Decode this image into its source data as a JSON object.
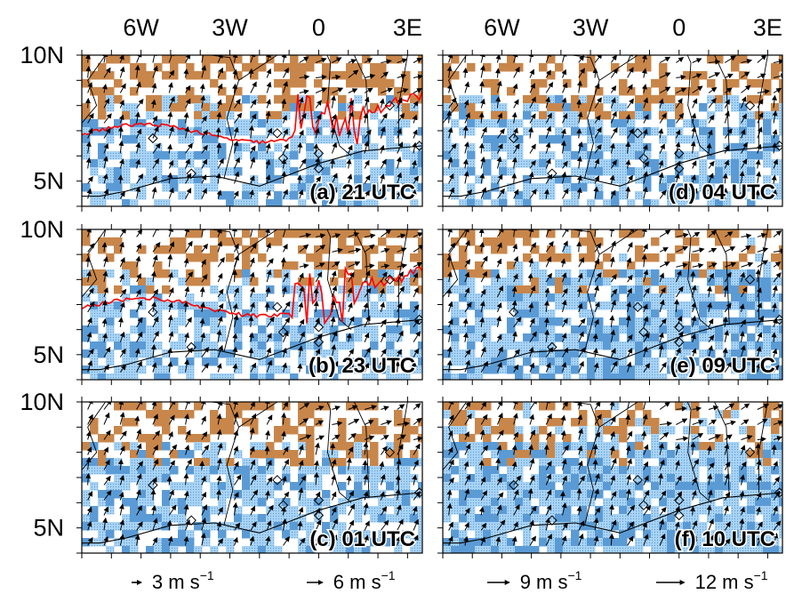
{
  "chart_data": {
    "type": "map-panels",
    "x_tick_labels": [
      "6W",
      "3W",
      "0",
      "3E"
    ],
    "x_tick_values": [
      -6,
      -3,
      0,
      3
    ],
    "y_tick_labels": [
      "10N",
      "5N"
    ],
    "y_tick_values": [
      10,
      5
    ],
    "lon_range": [
      -8,
      3.5
    ],
    "lat_range": [
      4,
      10
    ],
    "colors": {
      "land_dry": "#c8864a",
      "cloud_light": "#a9d4f5",
      "cloud_dark": "#5b9bd5",
      "front": "#ff0000",
      "arrow": "#000000",
      "coast": "#000000"
    },
    "panels": [
      {
        "label": "(a) 21 UTC",
        "front": true
      },
      {
        "label": "(d) 04 UTC",
        "front": false
      },
      {
        "label": "(b) 23 UTC",
        "front": true
      },
      {
        "label": "(e) 09 UTC",
        "front": false
      },
      {
        "label": "(c) 01 UTC",
        "front": false
      },
      {
        "label": "(f) 10 UTC",
        "front": false
      }
    ],
    "legend": [
      {
        "speed": 3,
        "label": "3 m s"
      },
      {
        "speed": 6,
        "label": "6 m s"
      },
      {
        "speed": 9,
        "label": "9 m s"
      },
      {
        "speed": 12,
        "label": "12 m s"
      }
    ],
    "unit_exponent": "−1"
  }
}
